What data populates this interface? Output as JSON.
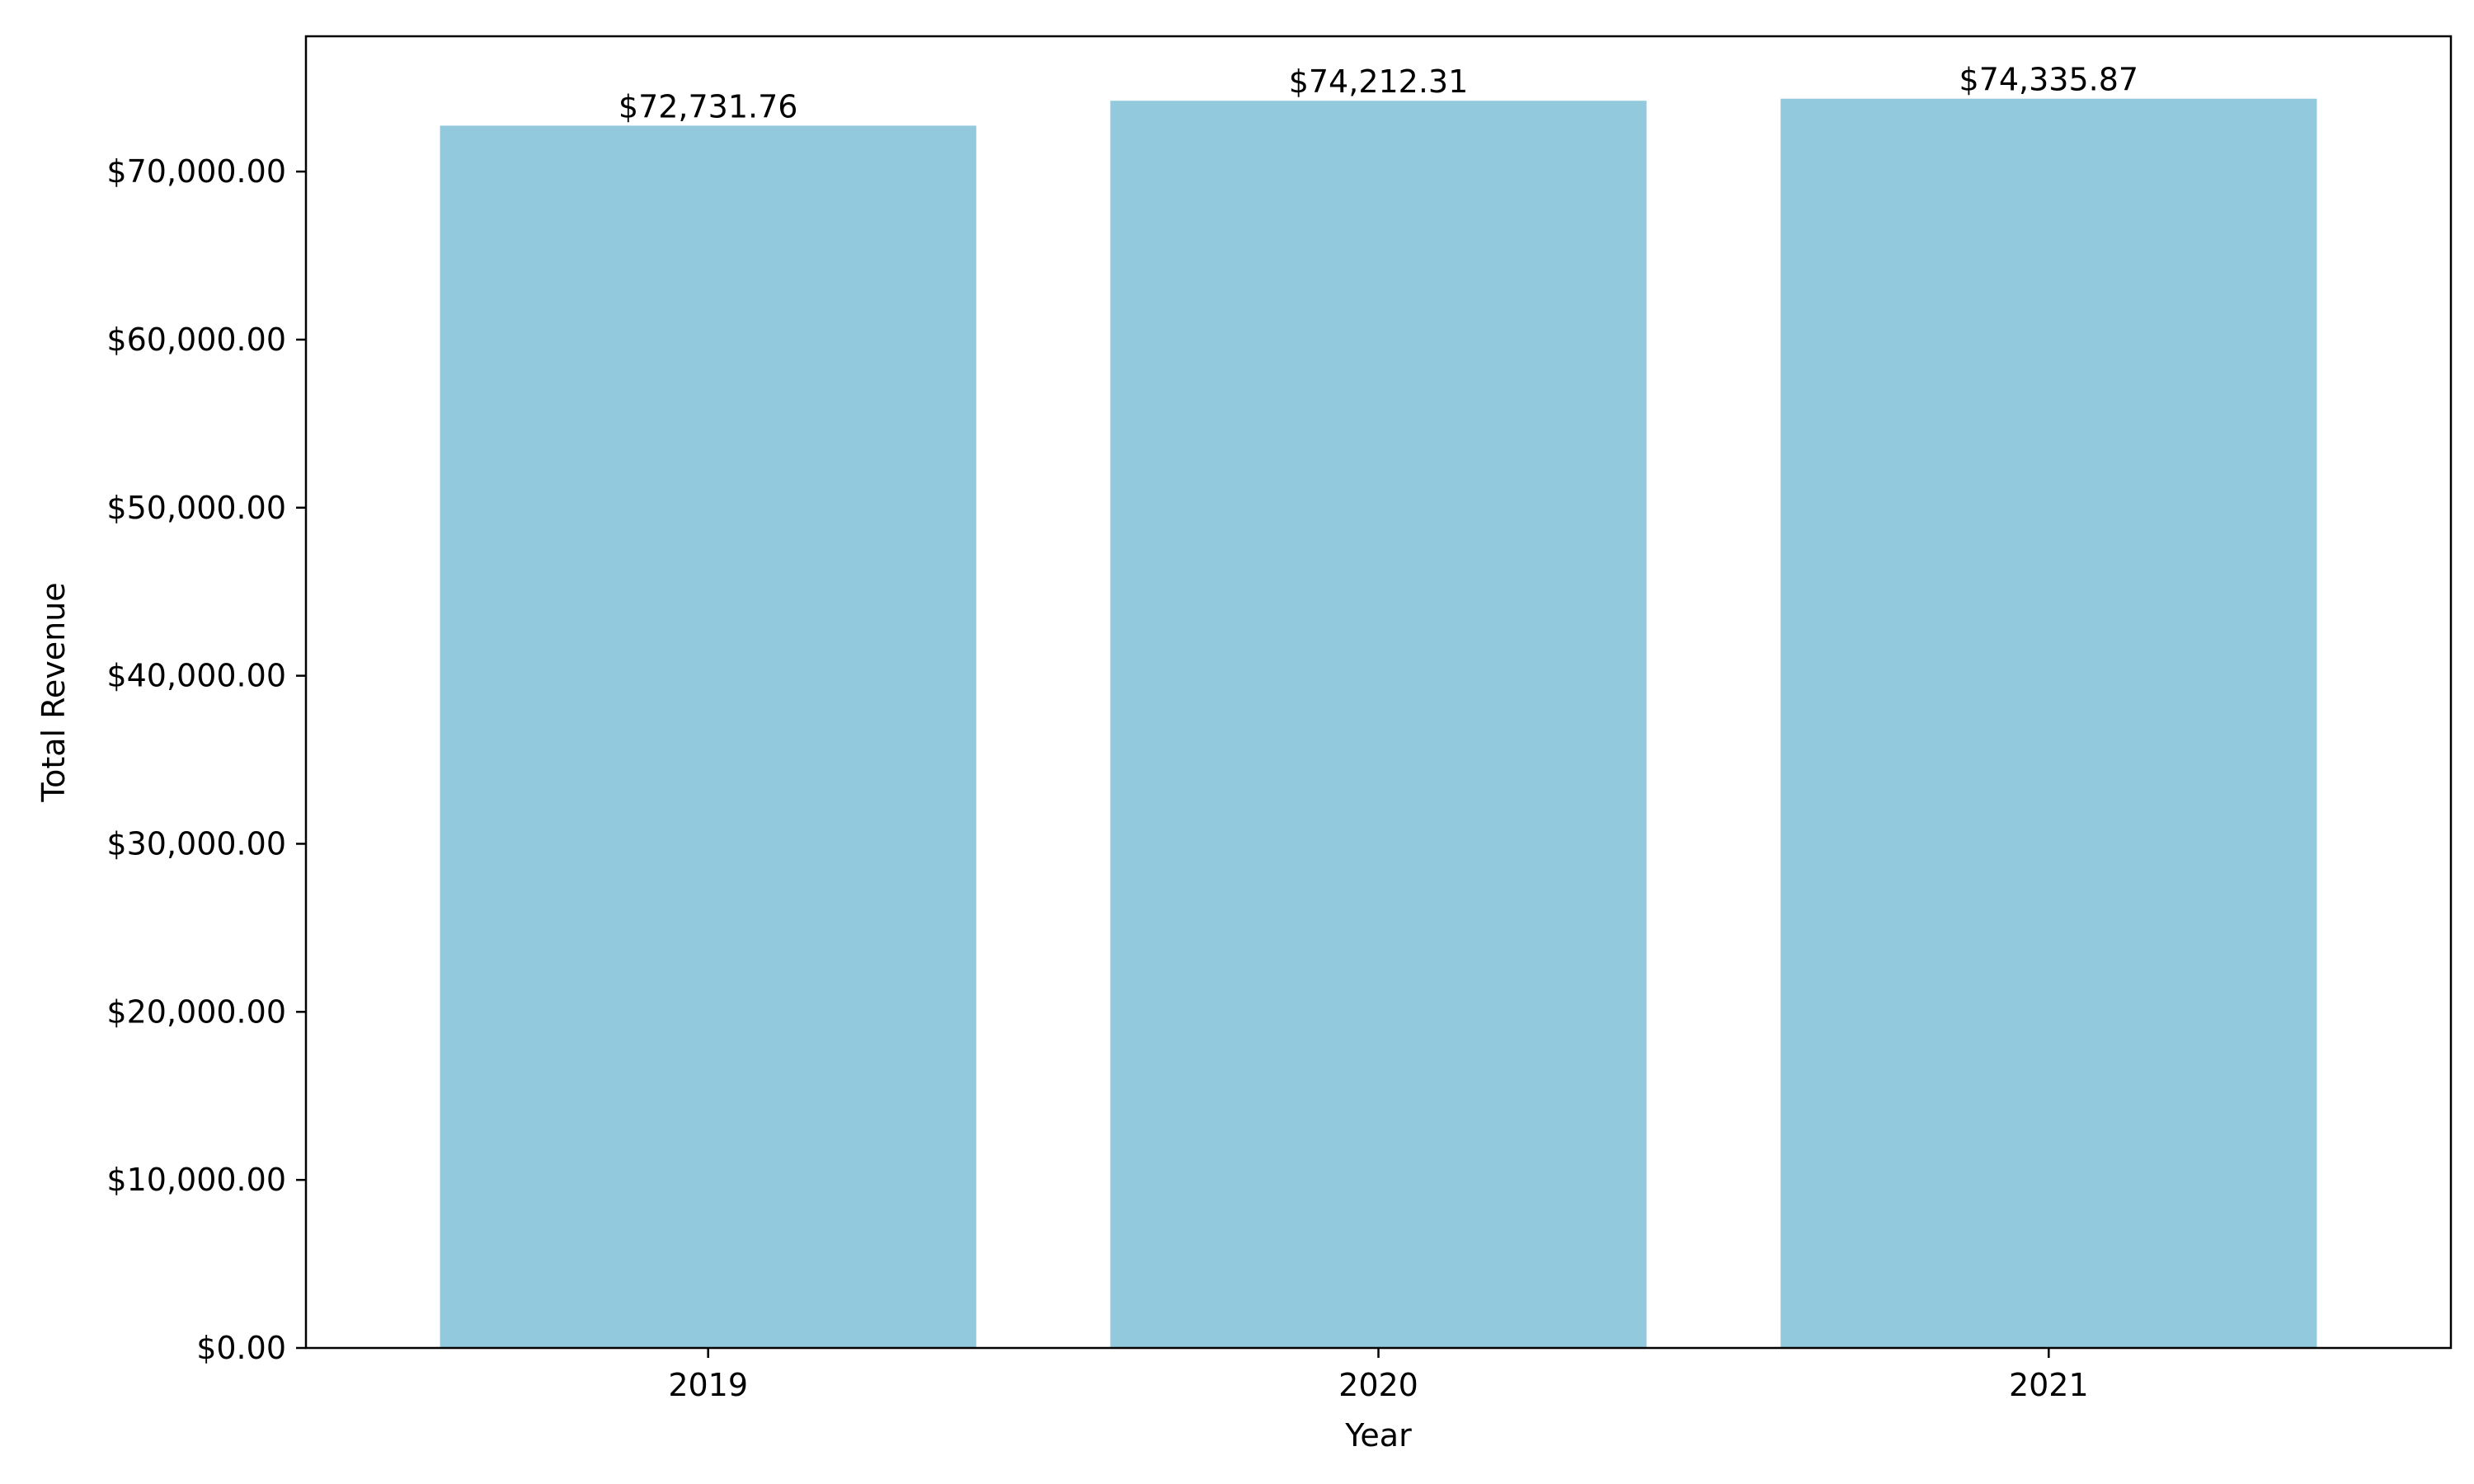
{
  "chart_data": {
    "type": "bar",
    "title": "",
    "xlabel": "Year",
    "ylabel": "Total Revenue",
    "categories": [
      "2019",
      "2020",
      "2021"
    ],
    "values": [
      72731.76,
      74212.31,
      74335.87
    ],
    "value_labels": [
      "$72,731.76",
      "$74,212.31",
      "$74,335.87"
    ],
    "ylim": [
      0,
      78050
    ],
    "yticks": [
      0,
      10000,
      20000,
      30000,
      40000,
      50000,
      60000,
      70000
    ],
    "ytick_labels": [
      "$0.00",
      "$10,000.00",
      "$20,000.00",
      "$30,000.00",
      "$40,000.00",
      "$50,000.00",
      "$60,000.00",
      "$70,000.00"
    ],
    "grid": false,
    "legend": "none",
    "bar_color": "#92c9dd"
  }
}
